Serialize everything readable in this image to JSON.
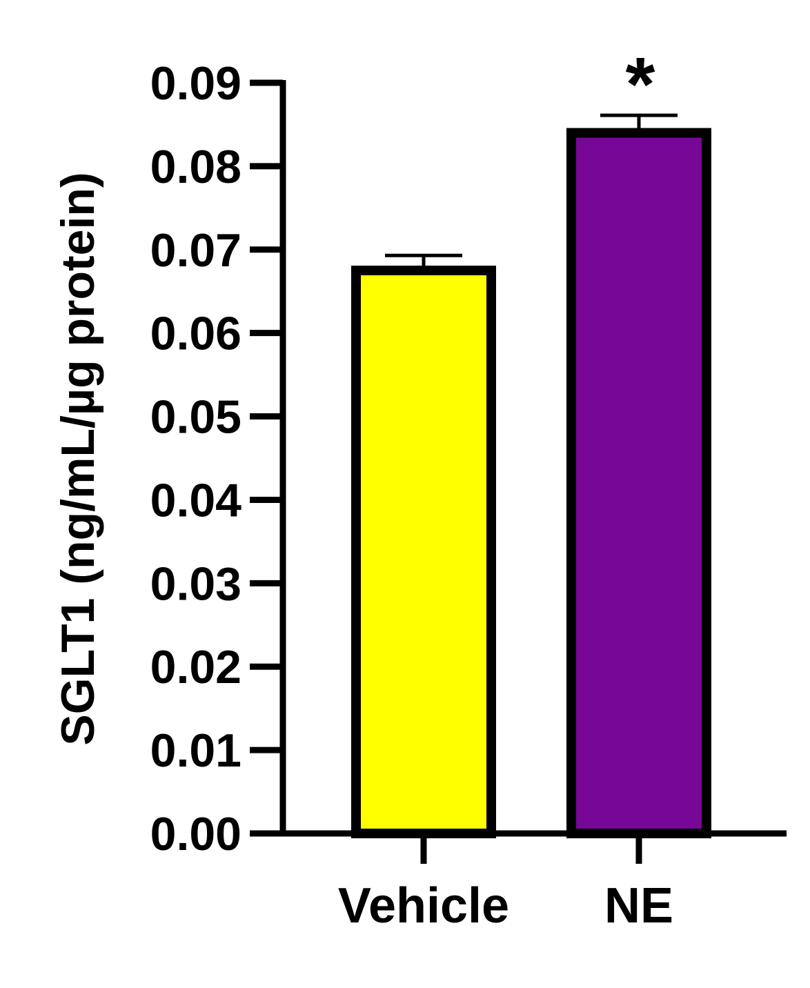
{
  "chart_data": {
    "type": "bar",
    "ylabel": "SGLT1 (ng/mL/µg protein)",
    "ylim": [
      0,
      0.09
    ],
    "yticks": [
      "0.00",
      "0.01",
      "0.02",
      "0.03",
      "0.04",
      "0.05",
      "0.06",
      "0.07",
      "0.08",
      "0.09"
    ],
    "categories": [
      "Vehicle",
      "NE"
    ],
    "values": [
      0.0675,
      0.084
    ],
    "errors": [
      0.0018,
      0.0021
    ],
    "colors": [
      "#ffff00",
      "#760797"
    ],
    "annotations": [
      "",
      "*"
    ]
  }
}
